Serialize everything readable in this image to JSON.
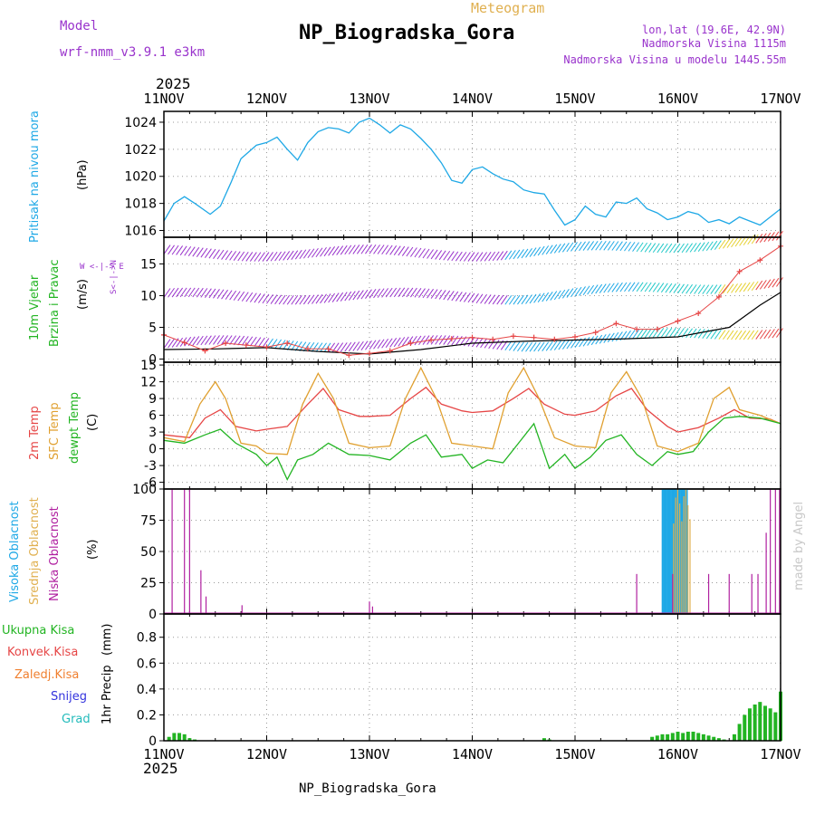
{
  "header": {
    "meteogram": "Meteogram",
    "station": "NP_Biogradska_Gora",
    "model_label": "Model",
    "model_name": "wrf-nmm_v3.9.1 e3km",
    "lonlat": "lon,lat (19.6E, 42.9N)",
    "elev": "Nadmorska Visina 1115m",
    "elev_model": "Nadmorska Visina u modelu 1445.55m",
    "year": "2025",
    "footer_station": "NP_Biogradska_Gora",
    "watermark": "made by Angel"
  },
  "colors": {
    "pressure": "#1ea8e6",
    "wind_label": "#22b422",
    "wind_sig": "#9933cc",
    "temp2m": "#e64646",
    "sfc": "#e0a030",
    "dewpt": "#22b422",
    "cloud_high": "#1ea8e6",
    "cloud_mid": "#e0b050",
    "cloud_low": "#b020a0",
    "precip_total": "#22b422",
    "precip_conv": "#e64646",
    "precip_frz": "#f08030",
    "snow": "#3333dd",
    "hail": "#22bbbb"
  },
  "chart_data": {
    "type": "line",
    "x_ticks": [
      "11NOV",
      "12NOV",
      "13NOV",
      "14NOV",
      "15NOV",
      "16NOV",
      "17NOV"
    ],
    "panels": [
      {
        "id": "pressure",
        "ylabel": "Pritisak na nivou mora",
        "units": "(hPa)",
        "ylim": [
          1015.5,
          1024.8
        ],
        "ticks": [
          1016,
          1018,
          1020,
          1022,
          1024
        ],
        "series": [
          {
            "name": "pressure",
            "t": [
              0,
              0.1,
              0.2,
              0.3,
              0.45,
              0.55,
              0.65,
              0.75,
              0.9,
              1.0,
              1.1,
              1.2,
              1.3,
              1.4,
              1.5,
              1.6,
              1.7,
              1.8,
              1.9,
              2.0,
              2.1,
              2.2,
              2.3,
              2.4,
              2.5,
              2.6,
              2.7,
              2.8,
              2.9,
              3.0,
              3.1,
              3.2,
              3.3,
              3.4,
              3.5,
              3.6,
              3.7,
              3.8,
              3.9,
              4.0,
              4.1,
              4.2,
              4.3,
              4.4,
              4.5,
              4.6,
              4.7,
              4.8,
              4.9,
              5.0,
              5.1,
              5.2,
              5.3,
              5.4,
              5.5,
              5.6,
              5.7,
              5.8,
              5.9,
              6.0
            ],
            "values": [
              1016.7,
              1018.0,
              1018.5,
              1018.0,
              1017.2,
              1017.8,
              1019.5,
              1021.3,
              1022.3,
              1022.5,
              1022.9,
              1022.0,
              1021.2,
              1022.5,
              1023.3,
              1023.6,
              1023.5,
              1023.2,
              1024.0,
              1024.3,
              1023.8,
              1023.2,
              1023.8,
              1023.5,
              1022.8,
              1022.0,
              1021.0,
              1019.7,
              1019.5,
              1020.5,
              1020.7,
              1020.2,
              1019.8,
              1019.6,
              1019.0,
              1018.8,
              1018.7,
              1017.5,
              1016.4,
              1016.8,
              1017.8,
              1017.2,
              1017.0,
              1018.1,
              1018.0,
              1018.4,
              1017.6,
              1017.3,
              1016.8,
              1017.0,
              1017.4,
              1017.2,
              1016.6,
              1016.8,
              1016.5,
              1017.0,
              1016.7,
              1016.4,
              1017.0,
              1017.6
            ]
          }
        ]
      },
      {
        "id": "wind",
        "ylabel": "10m Vjetar",
        "ylabel2": "Brzina i Pravac",
        "units": "(m/s)",
        "ylim": [
          -0.5,
          19.2
        ],
        "ticks": [
          0,
          5,
          10,
          15
        ],
        "compass": "W <-|-> E",
        "compass_ns": "S<-|->N",
        "series": [
          {
            "name": "gust",
            "t": [
              0,
              0.2,
              0.4,
              0.6,
              0.8,
              1.0,
              1.2,
              1.4,
              1.6,
              1.8,
              2.0,
              2.2,
              2.4,
              2.6,
              2.8,
              3.0,
              3.2,
              3.4,
              3.6,
              3.8,
              4.0,
              4.2,
              4.4,
              4.6,
              4.8,
              5.0,
              5.2,
              5.4,
              5.6,
              5.8,
              6.0
            ],
            "values": [
              3.8,
              2.6,
              1.3,
              2.5,
              2.2,
              1.9,
              2.5,
              1.6,
              1.6,
              0.6,
              0.9,
              1.3,
              2.5,
              3.0,
              3.2,
              3.4,
              3.1,
              3.6,
              3.4,
              3.1,
              3.5,
              4.2,
              5.6,
              4.7,
              4.7,
              6.0,
              7.2,
              9.8,
              13.8,
              15.6,
              17.8
            ]
          },
          {
            "name": "speed",
            "t": [
              0,
              0.5,
              1.0,
              1.5,
              2.0,
              2.5,
              3.0,
              3.5,
              4.0,
              4.5,
              5.0,
              5.5,
              5.8,
              6.0
            ],
            "values": [
              1.5,
              1.6,
              1.8,
              1.2,
              0.8,
              1.5,
              2.5,
              2.8,
              3.0,
              3.2,
              3.5,
              5.0,
              8.5,
              10.5
            ]
          }
        ]
      },
      {
        "id": "temp",
        "ylabel": "2m Temp",
        "ylabel2": "SFC Temp",
        "ylabel3": "dewpt Temp",
        "units": "(C)",
        "ylim": [
          -7.2,
          15.5
        ],
        "ticks": [
          -6,
          -3,
          0,
          3,
          6,
          9,
          12,
          15
        ],
        "series": [
          {
            "name": "t2m",
            "t": [
              0,
              0.25,
              0.4,
              0.55,
              0.7,
              0.9,
              1.0,
              1.2,
              1.4,
              1.55,
              1.7,
              1.9,
              2.0,
              2.2,
              2.4,
              2.55,
              2.7,
              2.9,
              3.0,
              3.2,
              3.4,
              3.55,
              3.7,
              3.9,
              4.0,
              4.2,
              4.4,
              4.55,
              4.7,
              4.9,
              5.0,
              5.2,
              5.4,
              5.55,
              5.7,
              5.9,
              6.0
            ],
            "values": [
              2.5,
              2.0,
              5.5,
              7.0,
              4.0,
              3.2,
              3.5,
              4.0,
              8.0,
              10.8,
              7.0,
              5.8,
              5.8,
              6.0,
              9.0,
              11.0,
              8.0,
              6.8,
              6.5,
              6.8,
              9.0,
              10.8,
              8.0,
              6.2,
              6.0,
              6.8,
              9.5,
              10.8,
              7.0,
              4.0,
              3.0,
              3.8,
              5.5,
              7.0,
              5.5,
              5.3,
              4.5
            ]
          },
          {
            "name": "sfc",
            "t": [
              0,
              0.2,
              0.35,
              0.5,
              0.6,
              0.75,
              0.9,
              1.0,
              1.2,
              1.35,
              1.5,
              1.65,
              1.8,
              2.0,
              2.2,
              2.35,
              2.5,
              2.65,
              2.8,
              3.0,
              3.2,
              3.35,
              3.5,
              3.65,
              3.8,
              4.0,
              4.2,
              4.35,
              4.5,
              4.65,
              4.8,
              5.0,
              5.2,
              5.35,
              5.5,
              5.6,
              5.8,
              6.0
            ],
            "values": [
              2.0,
              1.3,
              8.0,
              12.0,
              9.0,
              1.0,
              0.5,
              -0.8,
              -1.0,
              8.0,
              13.5,
              9.0,
              1.0,
              0.2,
              0.5,
              9.0,
              14.5,
              9.0,
              1.0,
              0.5,
              0.0,
              10.0,
              14.5,
              9.0,
              2.0,
              0.5,
              0.2,
              10.0,
              13.8,
              9.0,
              0.5,
              -0.5,
              1.0,
              9.0,
              11.0,
              7.0,
              6.0,
              4.5
            ]
          },
          {
            "name": "dewpt",
            "t": [
              0,
              0.2,
              0.4,
              0.55,
              0.7,
              0.9,
              1.0,
              1.1,
              1.2,
              1.3,
              1.45,
              1.6,
              1.8,
              2.0,
              2.2,
              2.4,
              2.55,
              2.7,
              2.9,
              3.0,
              3.15,
              3.3,
              3.45,
              3.6,
              3.75,
              3.9,
              4.0,
              4.15,
              4.3,
              4.45,
              4.6,
              4.75,
              4.9,
              5.0,
              5.15,
              5.3,
              5.45,
              5.6,
              5.8,
              6.0
            ],
            "values": [
              1.5,
              1.0,
              2.5,
              3.5,
              1.0,
              -1.0,
              -3.0,
              -1.5,
              -5.5,
              -2.0,
              -1.0,
              1.0,
              -1.0,
              -1.2,
              -2.0,
              1.0,
              2.5,
              -1.5,
              -1.0,
              -3.5,
              -2.0,
              -2.5,
              1.0,
              4.5,
              -3.5,
              -1.0,
              -3.5,
              -1.5,
              1.5,
              2.5,
              -1.0,
              -3.0,
              -0.5,
              -1.0,
              -0.5,
              3.0,
              5.5,
              5.8,
              5.5,
              4.5
            ]
          }
        ]
      },
      {
        "id": "cloud",
        "ylabel": "Visoka Oblacnost",
        "ylabel2": "Srednja Oblacnost",
        "ylabel3": "Niska Oblacnost",
        "units": "(%)",
        "ylim": [
          0,
          100
        ],
        "ticks": [
          0,
          25,
          50,
          75,
          100
        ],
        "low_bars": {
          "t": [
            0.08,
            0.2,
            0.25,
            0.36,
            0.41,
            0.76,
            2.0,
            2.03,
            4.6,
            4.95,
            5.3,
            5.5,
            5.72,
            5.78,
            5.86,
            5.9,
            5.95,
            5.99
          ],
          "values": [
            100,
            100,
            100,
            35,
            14,
            7,
            10,
            6,
            32,
            32,
            32,
            32,
            32,
            32,
            65,
            100,
            100,
            100
          ]
        },
        "high_band": {
          "t0": 4.85,
          "t1": 5.1,
          "value": 100
        },
        "mid_band": {
          "t0": 4.95,
          "t1": 5.12,
          "value": 100
        }
      },
      {
        "id": "precip",
        "ylabel": "1hr Precip",
        "units": "(mm)",
        "ylim": [
          0,
          0.98
        ],
        "ticks": [
          0,
          0.2,
          0.4,
          0.6,
          0.8
        ],
        "legend": [
          "Ukupna Kisa",
          "Konvek.Kisa",
          "Zaledj.Kisa",
          "Snijeg",
          "Grad"
        ],
        "bars": {
          "t": [
            0.05,
            0.1,
            0.15,
            0.2,
            0.25,
            0.3,
            3.7,
            3.75,
            4.75,
            4.8,
            4.85,
            4.9,
            4.95,
            5.0,
            5.05,
            5.1,
            5.15,
            5.2,
            5.25,
            5.3,
            5.35,
            5.4,
            5.45,
            5.55,
            5.6,
            5.65,
            5.7,
            5.75,
            5.8,
            5.85,
            5.9,
            5.95,
            6.0
          ],
          "values": [
            0.03,
            0.06,
            0.06,
            0.05,
            0.02,
            0.01,
            0.02,
            0.01,
            0.03,
            0.04,
            0.05,
            0.05,
            0.06,
            0.07,
            0.06,
            0.07,
            0.07,
            0.06,
            0.05,
            0.04,
            0.03,
            0.02,
            0.01,
            0.05,
            0.13,
            0.2,
            0.25,
            0.28,
            0.3,
            0.27,
            0.25,
            0.22,
            0.38
          ]
        }
      }
    ]
  }
}
